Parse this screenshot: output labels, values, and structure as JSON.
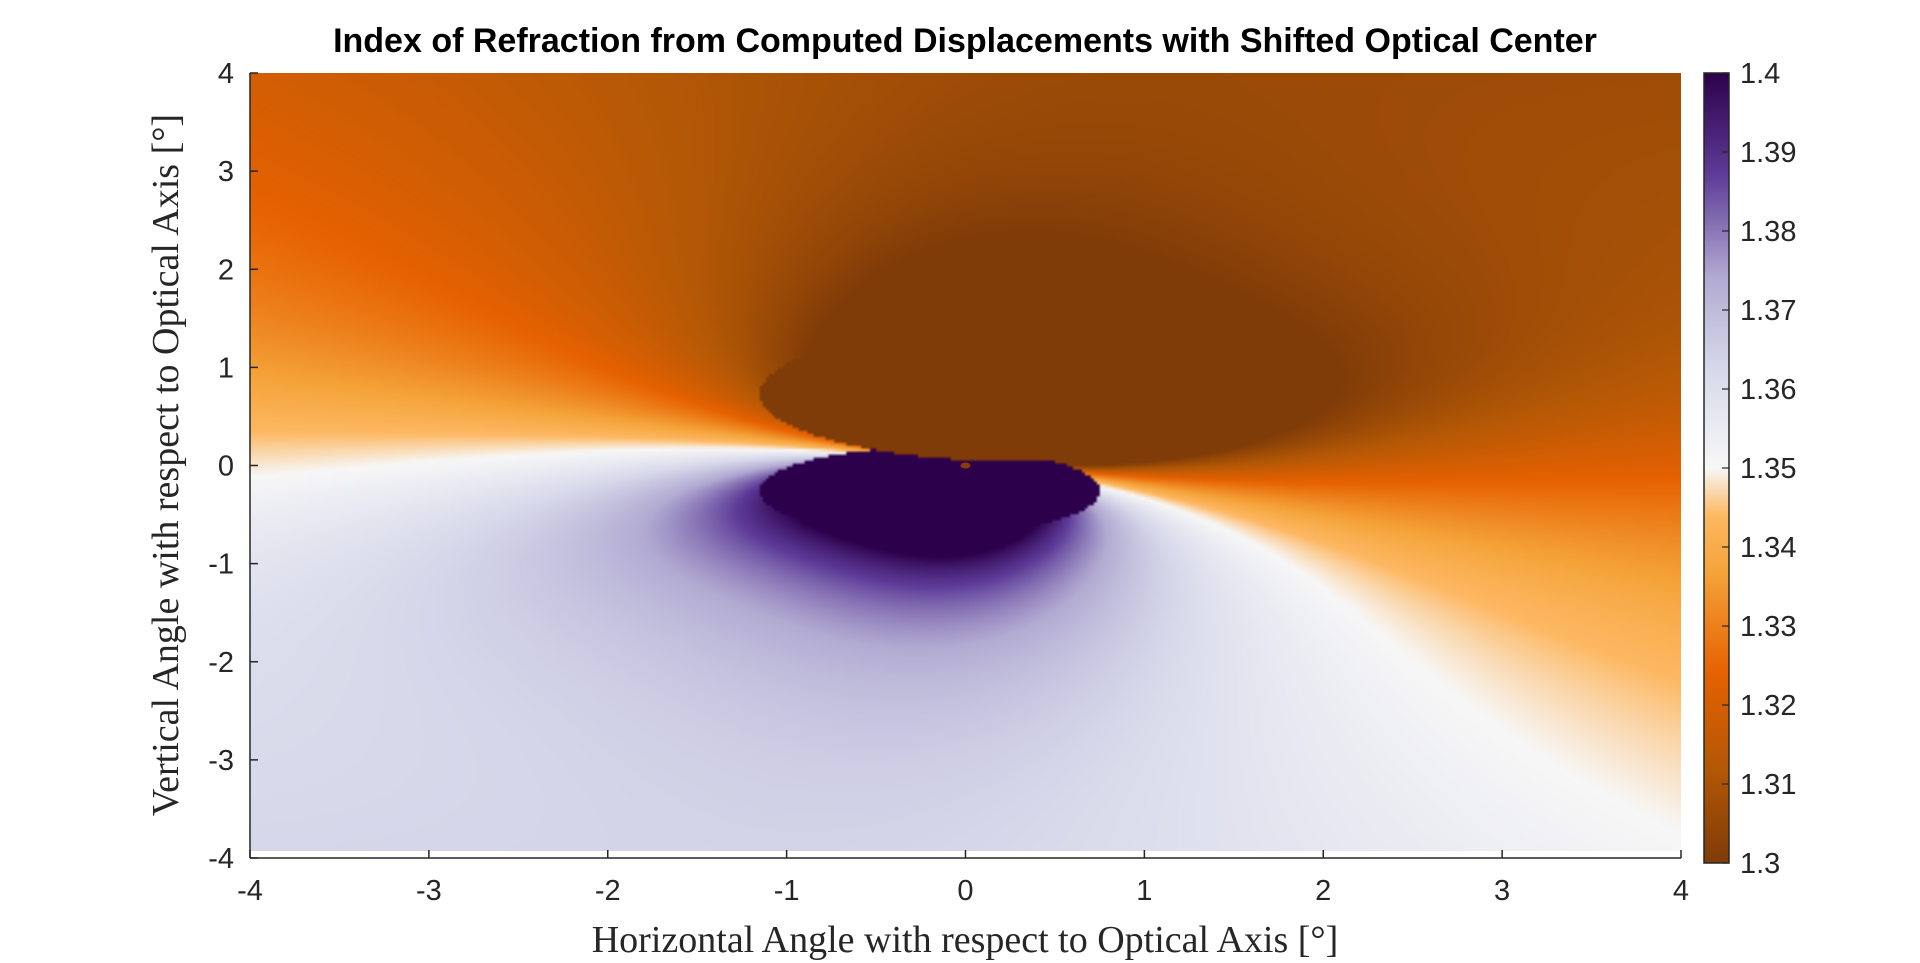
{
  "chart_data": {
    "type": "heatmap",
    "title": "Index of Refraction from Computed Displacements with Shifted Optical Center",
    "xlabel": "Horizontal Angle with respect to Optical Axis [°]",
    "ylabel": "Vertical Angle with respect to Optical Axis [°]",
    "xlim": [
      -4,
      4
    ],
    "ylim": [
      -4,
      4
    ],
    "xticks": [
      -4,
      -3,
      -2,
      -1,
      0,
      1,
      2,
      3,
      4
    ],
    "yticks": [
      -4,
      -3,
      -2,
      -1,
      0,
      1,
      2,
      3,
      4
    ],
    "colorbar": {
      "range": [
        1.3,
        1.4
      ],
      "ticks": [
        1.3,
        1.31,
        1.32,
        1.33,
        1.34,
        1.35,
        1.36,
        1.37,
        1.38,
        1.39,
        1.4
      ],
      "colormap": [
        "#7f3b08",
        "#e66101",
        "#fdb863",
        "#f7f7f7",
        "#b2abd2",
        "#5e3c99",
        "#2d004b"
      ]
    },
    "features": {
      "saturated_high_region": {
        "center": [
          -0.2,
          -0.3
        ],
        "value": 1.4
      },
      "saturated_low_region": {
        "center": [
          0.35,
          0.7
        ],
        "value": 1.3
      },
      "marker_point": {
        "x": 0.0,
        "y": 0.0
      },
      "background_level": 1.335
    }
  }
}
